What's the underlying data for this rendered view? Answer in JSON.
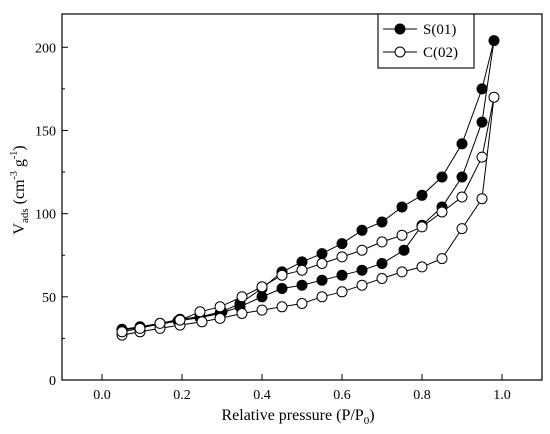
{
  "chart_data": {
    "type": "scatter",
    "xlabel": "Relative pressure (P/P",
    "xlabel_sub": "0",
    "xlabel_end": ")",
    "ylabel": "V",
    "ylabel_sub": "ads",
    "ylabel_unit_a": "(cm",
    "ylabel_sup_a": "-3",
    "ylabel_unit_b": "g",
    "ylabel_sup_b": "-1",
    "ylabel_end": ")",
    "xlim": [
      -0.1,
      1.1
    ],
    "ylim": [
      0,
      220
    ],
    "xticks": [
      0.0,
      0.2,
      0.4,
      0.6,
      0.8,
      1.0
    ],
    "xtick_labels": [
      "0.0",
      "0.2",
      "0.4",
      "0.6",
      "0.8",
      "1.0"
    ],
    "yticks": [
      0,
      50,
      100,
      150,
      200
    ],
    "ytick_labels": [
      "0",
      "50",
      "100",
      "150",
      "200"
    ],
    "grid": false,
    "legend_position": "top-right",
    "series": [
      {
        "name": "S(01)",
        "marker": "filled-circle",
        "color": "#000000",
        "x": [
          0.05,
          0.095,
          0.145,
          0.19,
          0.245,
          0.295,
          0.345,
          0.4,
          0.45,
          0.5,
          0.55,
          0.6,
          0.65,
          0.7,
          0.755,
          0.8,
          0.85,
          0.9,
          0.95,
          0.98,
          0.95,
          0.9,
          0.85,
          0.8,
          0.75,
          0.7,
          0.65,
          0.6,
          0.55,
          0.5,
          0.45,
          0.4,
          0.345,
          0.3,
          0.245,
          0.195,
          0.145,
          0.095,
          0.05
        ],
        "y": [
          30,
          31.5,
          33.5,
          35.5,
          37.5,
          40,
          44,
          50,
          55,
          57,
          60,
          63,
          66,
          70,
          78,
          93,
          104,
          122,
          155,
          204,
          175,
          142,
          122,
          111,
          104,
          95,
          90,
          82,
          76,
          71,
          65,
          55,
          46,
          41,
          38,
          36.5,
          34,
          32,
          30.5
        ]
      },
      {
        "name": "C(02)",
        "marker": "open-circle",
        "color": "#000000",
        "x": [
          0.05,
          0.095,
          0.145,
          0.195,
          0.25,
          0.295,
          0.35,
          0.4,
          0.45,
          0.5,
          0.55,
          0.6,
          0.65,
          0.7,
          0.75,
          0.8,
          0.85,
          0.9,
          0.95,
          0.98,
          0.95,
          0.9,
          0.85,
          0.8,
          0.75,
          0.7,
          0.65,
          0.6,
          0.55,
          0.5,
          0.45,
          0.4,
          0.35,
          0.295,
          0.245,
          0.195,
          0.145,
          0.095,
          0.05
        ],
        "y": [
          27,
          29,
          31,
          33,
          35,
          37,
          40,
          42,
          44,
          46,
          50,
          53,
          57,
          61,
          65,
          68,
          73,
          91,
          109,
          170,
          134,
          110,
          101,
          92,
          87,
          83,
          78,
          74,
          70,
          66,
          63,
          56,
          50,
          44,
          41,
          36,
          34,
          31,
          29
        ]
      }
    ]
  }
}
